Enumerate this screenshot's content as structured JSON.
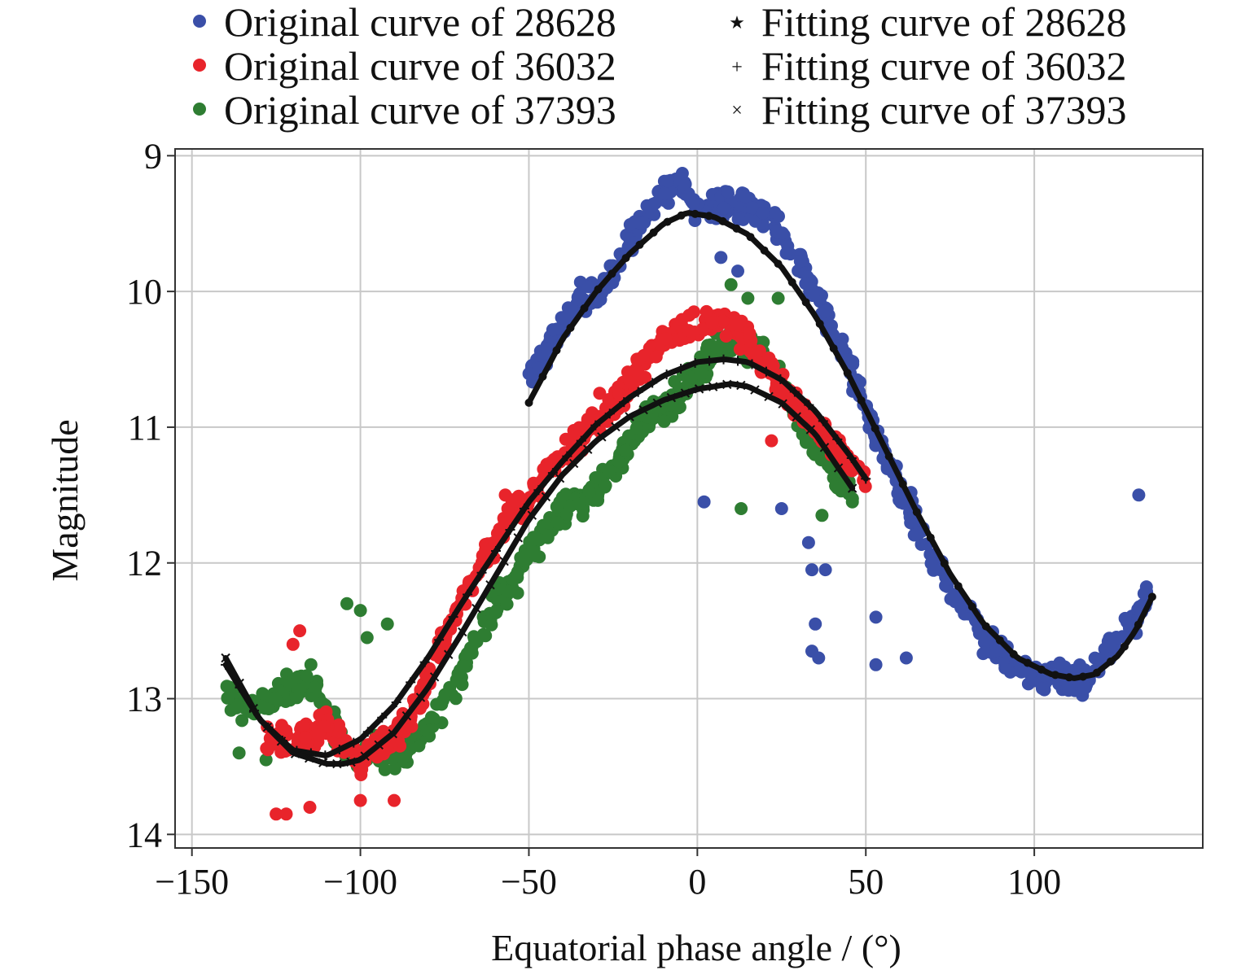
{
  "chart_data": {
    "type": "scatter",
    "title": "",
    "xlabel": "Equatorial phase angle / (°)",
    "ylabel": "Magnitude",
    "xlim": [
      -155,
      150
    ],
    "ylim": [
      14.1,
      8.95
    ],
    "y_inverted": true,
    "grid": true,
    "legend_position": "top",
    "x_ticks": [
      -150,
      -100,
      -50,
      0,
      50,
      100
    ],
    "y_ticks": [
      9,
      10,
      11,
      12,
      13,
      14
    ],
    "x_tick_labels": [
      "−150",
      "−100",
      "−50",
      "0",
      "50",
      "100"
    ],
    "y_tick_labels": [
      "9",
      "10",
      "11",
      "12",
      "13",
      "14"
    ],
    "colors": {
      "blue": "#3a4fa8",
      "red": "#e8242b",
      "green": "#2e7d32",
      "fit": "#111111",
      "grid": "#c8c8c8"
    },
    "series": [
      {
        "name": "Original curve of 28628",
        "kind": "original",
        "marker": "dot",
        "color": "#3a4fa8",
        "x_range": [
          -50,
          135
        ],
        "x": [
          -50,
          -45,
          -40,
          -35,
          -30,
          -25,
          -20,
          -15,
          -10,
          -5,
          0,
          5,
          10,
          15,
          20,
          25,
          30,
          35,
          40,
          45,
          50,
          55,
          60,
          65,
          70,
          75,
          80,
          85,
          90,
          95,
          100,
          105,
          110,
          115,
          120,
          125,
          130,
          135
        ],
        "y": [
          10.65,
          10.45,
          10.25,
          10.05,
          10.05,
          9.85,
          9.6,
          9.45,
          9.25,
          9.2,
          9.4,
          9.4,
          9.35,
          9.35,
          9.45,
          9.55,
          9.75,
          10.0,
          10.25,
          10.55,
          10.85,
          11.2,
          11.45,
          11.7,
          11.95,
          12.2,
          12.35,
          12.55,
          12.65,
          12.8,
          12.85,
          12.85,
          12.9,
          12.85,
          12.7,
          12.55,
          12.4,
          12.2
        ],
        "outliers": [
          {
            "x": 2,
            "y": 11.55
          },
          {
            "x": 25,
            "y": 11.6
          },
          {
            "x": 33,
            "y": 11.85
          },
          {
            "x": 34,
            "y": 12.05
          },
          {
            "x": 38,
            "y": 12.05
          },
          {
            "x": 35,
            "y": 12.45
          },
          {
            "x": 34,
            "y": 12.65
          },
          {
            "x": 36,
            "y": 12.7
          },
          {
            "x": 53,
            "y": 12.4
          },
          {
            "x": 53,
            "y": 12.75
          },
          {
            "x": 62,
            "y": 12.7
          },
          {
            "x": 131,
            "y": 11.5
          },
          {
            "x": 12,
            "y": 9.85
          },
          {
            "x": 7,
            "y": 9.75
          }
        ]
      },
      {
        "name": "Original curve of 36032",
        "kind": "original",
        "marker": "dot",
        "color": "#e8242b",
        "x_range": [
          -128,
          50
        ],
        "x": [
          -125,
          -120,
          -115,
          -110,
          -105,
          -100,
          -95,
          -90,
          -85,
          -80,
          -75,
          -70,
          -65,
          -60,
          -55,
          -50,
          -45,
          -40,
          -35,
          -30,
          -25,
          -20,
          -15,
          -10,
          -5,
          0,
          5,
          10,
          15,
          20,
          25,
          30,
          35,
          40,
          45,
          50
        ],
        "y": [
          13.3,
          13.3,
          13.25,
          13.2,
          13.35,
          13.45,
          13.35,
          13.3,
          13.1,
          12.85,
          12.55,
          12.3,
          12.0,
          11.85,
          11.6,
          11.55,
          11.35,
          11.2,
          11.05,
          10.95,
          10.85,
          10.65,
          10.5,
          10.35,
          10.3,
          10.25,
          10.2,
          10.25,
          10.35,
          10.55,
          10.7,
          10.85,
          11.0,
          11.1,
          11.25,
          11.4
        ],
        "outliers": [
          {
            "x": -125,
            "y": 13.85
          },
          {
            "x": -122,
            "y": 13.85
          },
          {
            "x": -115,
            "y": 13.8
          },
          {
            "x": -118,
            "y": 12.5
          },
          {
            "x": -120,
            "y": 12.6
          },
          {
            "x": -100,
            "y": 13.75
          },
          {
            "x": -90,
            "y": 13.75
          },
          {
            "x": -29,
            "y": 10.75
          },
          {
            "x": 22,
            "y": 11.1
          },
          {
            "x": -57,
            "y": 11.5
          }
        ]
      },
      {
        "name": "Original curve of 37393",
        "kind": "original",
        "marker": "dot",
        "color": "#2e7d32",
        "x_range": [
          -140,
          47
        ],
        "x": [
          -140,
          -135,
          -130,
          -125,
          -120,
          -115,
          -110,
          -105,
          -100,
          -95,
          -90,
          -85,
          -80,
          -75,
          -70,
          -65,
          -60,
          -55,
          -50,
          -45,
          -40,
          -35,
          -30,
          -25,
          -20,
          -15,
          -10,
          -5,
          0,
          5,
          10,
          15,
          20,
          25,
          30,
          35,
          40,
          45
        ],
        "y": [
          12.95,
          13.1,
          13.05,
          13.0,
          12.9,
          12.85,
          13.1,
          13.35,
          13.4,
          13.4,
          13.4,
          13.35,
          13.2,
          13.05,
          12.8,
          12.55,
          12.3,
          12.15,
          11.95,
          11.75,
          11.65,
          11.55,
          11.45,
          11.3,
          11.1,
          10.95,
          10.85,
          10.75,
          10.6,
          10.45,
          10.35,
          10.4,
          10.45,
          10.7,
          10.95,
          11.15,
          11.3,
          11.45
        ],
        "outliers": [
          {
            "x": -104,
            "y": 12.3
          },
          {
            "x": -100,
            "y": 12.35
          },
          {
            "x": -98,
            "y": 12.55
          },
          {
            "x": -92,
            "y": 12.45
          },
          {
            "x": -128,
            "y": 13.45
          },
          {
            "x": -136,
            "y": 13.4
          },
          {
            "x": 13,
            "y": 11.6
          },
          {
            "x": 37,
            "y": 11.65
          },
          {
            "x": 46,
            "y": 11.55
          },
          {
            "x": 10,
            "y": 9.95
          },
          {
            "x": 15,
            "y": 10.05
          },
          {
            "x": 24,
            "y": 10.05
          }
        ]
      },
      {
        "name": "Fitting curve of 28628",
        "kind": "fit",
        "marker": "star",
        "color": "#111111",
        "x_range": [
          -50,
          135
        ],
        "x": [
          -50,
          -40,
          -30,
          -20,
          -10,
          -3,
          5,
          15,
          25,
          35,
          45,
          55,
          65,
          75,
          85,
          95,
          105,
          112,
          118,
          125,
          130,
          135
        ],
        "y": [
          10.82,
          10.35,
          10.0,
          9.72,
          9.5,
          9.42,
          9.45,
          9.58,
          9.82,
          10.18,
          10.62,
          11.12,
          11.62,
          12.08,
          12.45,
          12.7,
          12.82,
          12.85,
          12.82,
          12.68,
          12.5,
          12.25
        ]
      },
      {
        "name": "Fitting curve of 36032",
        "kind": "fit",
        "marker": "plus",
        "color": "#111111",
        "x_range": [
          -140,
          50
        ],
        "x": [
          -140,
          -130,
          -120,
          -110,
          -100,
          -90,
          -80,
          -70,
          -60,
          -50,
          -40,
          -30,
          -20,
          -10,
          0,
          8,
          15,
          25,
          35,
          45,
          50
        ],
        "y": [
          12.75,
          13.15,
          13.38,
          13.42,
          13.3,
          13.05,
          12.7,
          12.3,
          11.92,
          11.55,
          11.25,
          10.98,
          10.78,
          10.62,
          10.52,
          10.5,
          10.52,
          10.65,
          10.88,
          11.2,
          11.38
        ]
      },
      {
        "name": "Fitting curve of 37393",
        "kind": "fit",
        "marker": "cross",
        "color": "#111111",
        "x_range": [
          -140,
          46
        ],
        "x": [
          -140,
          -130,
          -120,
          -110,
          -105,
          -100,
          -90,
          -80,
          -70,
          -60,
          -50,
          -40,
          -30,
          -20,
          -10,
          0,
          10,
          15,
          25,
          35,
          46
        ],
        "y": [
          12.7,
          13.15,
          13.4,
          13.48,
          13.48,
          13.45,
          13.25,
          12.92,
          12.52,
          12.1,
          11.68,
          11.35,
          11.1,
          10.92,
          10.8,
          10.72,
          10.68,
          10.7,
          10.82,
          11.05,
          11.45
        ]
      }
    ]
  }
}
